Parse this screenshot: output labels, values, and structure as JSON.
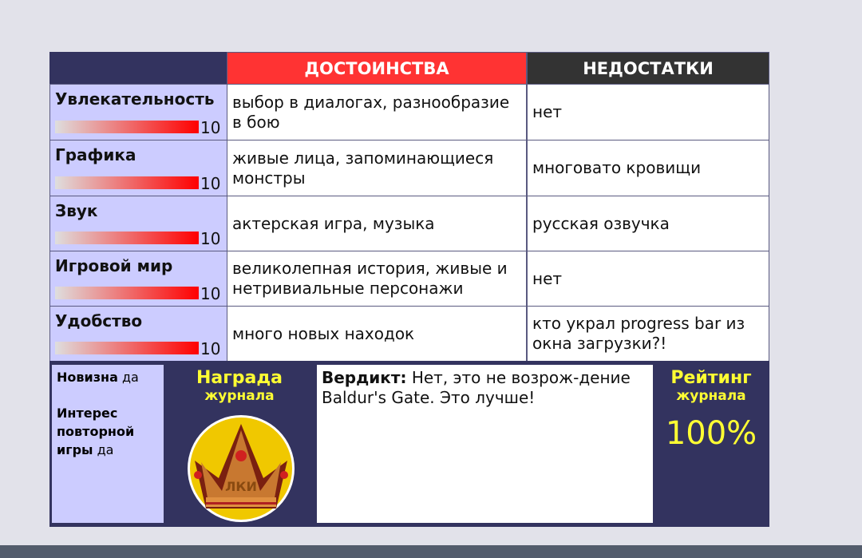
{
  "header": {
    "pros": "ДОСТОИНСТВА",
    "cons": "НЕДОСТАТКИ"
  },
  "colors": {
    "navy": "#33335f",
    "pros_header": "#ff3333",
    "cons_header": "#333333",
    "label_bg": "#ccccff",
    "award_text": "#ffff33"
  },
  "rows": [
    {
      "label": "Увлекательность",
      "score": "10",
      "level": 1.0,
      "pros": "выбор в диалогах, разнообразие в бою",
      "cons": "нет"
    },
    {
      "label": "Графика",
      "score": "10",
      "level": 1.0,
      "pros": "живые лица, запоминающиеся монстры",
      "cons": "многовато кровищи"
    },
    {
      "label": "Звук",
      "score": "10",
      "level": 1.0,
      "pros": "актерская игра, музыка",
      "cons": "русская озвучка"
    },
    {
      "label": "Игровой мир",
      "score": "10",
      "level": 1.0,
      "pros": "великолепная история, живые и нетривиальные персонажи",
      "cons": "нет"
    },
    {
      "label": "Удобство",
      "score": "10",
      "level": 1.0,
      "pros": "много новых находок",
      "cons": "кто украл progress bar из окна загрузки?!"
    }
  ],
  "extras": {
    "novelty_label": "Новизна",
    "novelty_value": "да",
    "replay_label": "Интерес повторной игры",
    "replay_value": "да"
  },
  "award": {
    "title": "Награда",
    "subtitle": "журнала",
    "logo_text": "ЛКИ",
    "icon": "crown-icon"
  },
  "verdict": {
    "label": "Вердикт:",
    "text": "Нет, это не возрож-дение Baldur's Gate. Это лучше!"
  },
  "rating": {
    "title": "Рейтинг",
    "subtitle": "журнала",
    "value": "100%"
  }
}
